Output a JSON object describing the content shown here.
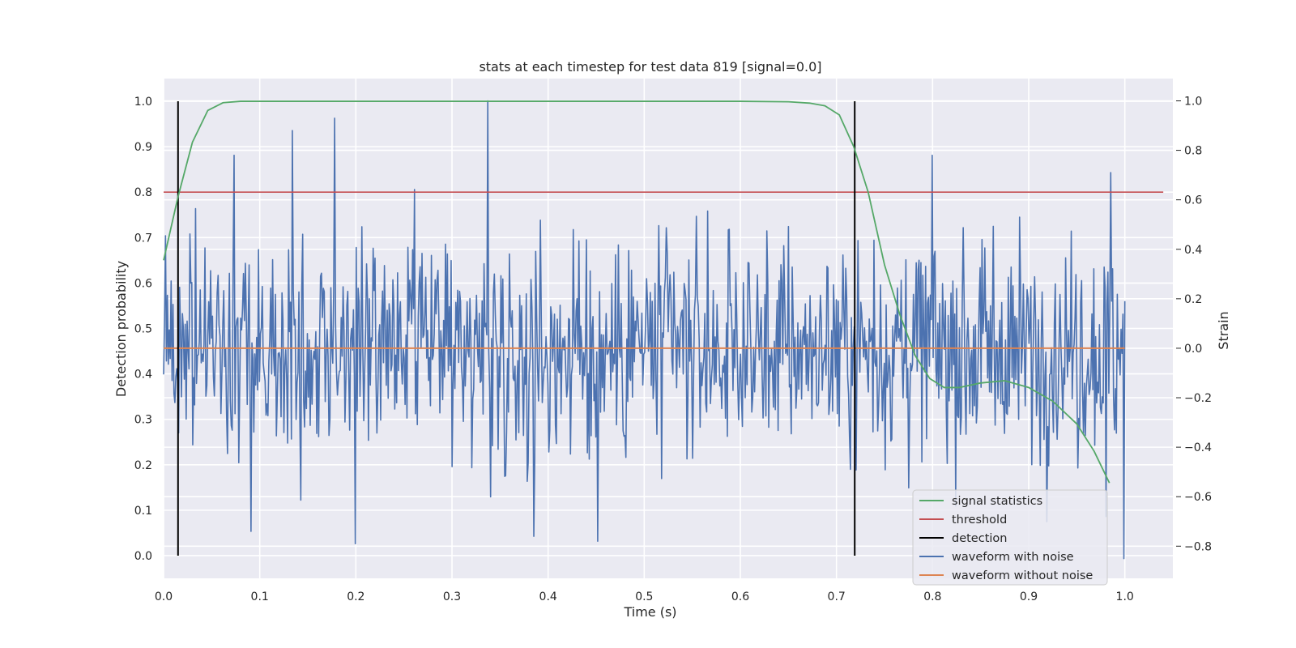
{
  "chart_data": {
    "type": "line",
    "title": "stats at each timestep for test data 819 [signal=0.0]",
    "xlabel": "Time (s)",
    "ylabel": "Detection probability",
    "ylabel_right": "Strain",
    "xlim": [
      0.0,
      1.05
    ],
    "ylim": [
      -0.05,
      1.05
    ],
    "ylim_right": [
      -0.93,
      1.09
    ],
    "x_ticks": [
      "0.0",
      "0.1",
      "0.2",
      "0.3",
      "0.4",
      "0.5",
      "0.6",
      "0.7",
      "0.8",
      "0.9",
      "1.0"
    ],
    "y_ticks": [
      "0.0",
      "0.1",
      "0.2",
      "0.3",
      "0.4",
      "0.5",
      "0.6",
      "0.7",
      "0.8",
      "0.9",
      "1.0"
    ],
    "y_ticks_right": [
      "1.0",
      "0.8",
      "0.6",
      "0.4",
      "0.2",
      "0.0",
      "−0.2",
      "−0.4",
      "−0.6",
      "−0.8"
    ],
    "grid": true,
    "legend_position": "lower-right",
    "legend": [
      "signal statistics",
      "threshold",
      "detection",
      "waveform with noise",
      "waveform without noise"
    ],
    "colors": {
      "signal_statistics": "#55a868",
      "threshold": "#c44e52",
      "detection": "#000000",
      "waveform_with_noise": "#4c72b0",
      "waveform_without_noise": "#dd8452",
      "plot_background": "#eaeaf2"
    },
    "signal_statistics": {
      "x": [
        0.0,
        0.015,
        0.03,
        0.046,
        0.062,
        0.08,
        0.1,
        0.2,
        0.3,
        0.4,
        0.5,
        0.6,
        0.65,
        0.672,
        0.688,
        0.703,
        0.718,
        0.733,
        0.75,
        0.766,
        0.782,
        0.797,
        0.812,
        0.828,
        0.85,
        0.875,
        0.9,
        0.925,
        0.95,
        0.968,
        0.984
      ],
      "y": [
        0.65,
        0.79,
        0.91,
        0.98,
        0.997,
        1.0,
        1.0,
        1.0,
        1.0,
        1.0,
        1.0,
        1.0,
        0.999,
        0.996,
        0.99,
        0.97,
        0.9,
        0.8,
        0.64,
        0.53,
        0.44,
        0.39,
        0.37,
        0.37,
        0.38,
        0.385,
        0.37,
        0.34,
        0.29,
        0.23,
        0.16
      ]
    },
    "threshold": {
      "x": [
        0.0,
        1.04
      ],
      "y": [
        0.8,
        0.8
      ]
    },
    "detection": {
      "x": [
        0.015,
        0.719
      ],
      "y": [
        0.0,
        1.0
      ]
    },
    "waveform_without_noise": {
      "x": [
        0.0,
        1.0
      ],
      "y": [
        0.0,
        0.0
      ]
    },
    "waveform_with_noise": {
      "n_points": 1024,
      "x": [
        0.0,
        1.0
      ],
      "y_range": [
        -0.85,
        1.0
      ],
      "y_std": 0.22,
      "marked_samples": [
        [
          0.337,
          1.0
        ],
        [
          0.178,
          0.93
        ],
        [
          0.134,
          0.88
        ],
        [
          0.073,
          0.78
        ],
        [
          0.8,
          0.78
        ],
        [
          0.985,
          0.71
        ],
        [
          0.199,
          -0.79
        ],
        [
          0.091,
          -0.74
        ],
        [
          0.452,
          -0.78
        ],
        [
          0.385,
          -0.76
        ],
        [
          0.999,
          -0.85
        ],
        [
          0.98,
          -0.68
        ]
      ]
    }
  }
}
